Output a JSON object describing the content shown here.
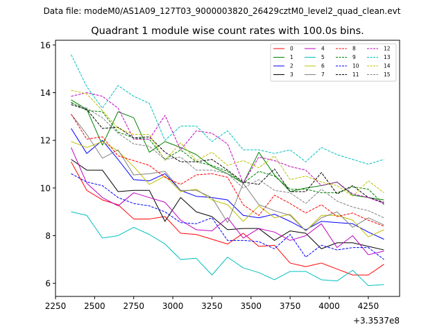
{
  "figure": {
    "suptitle": "Data file: modeM0/AS1A09_127T03_9000003820_26429cztM0_level2_quad_clean.evt"
  },
  "chart_data": {
    "type": "line",
    "title": "Quadrant 1 module wise count rates with 100.0s bins.",
    "xlabel": "",
    "ylabel": "",
    "x_offset_label": "+3.3537e8",
    "xlim": [
      2250,
      4450
    ],
    "ylim": [
      5.45,
      16.2
    ],
    "xticks": [
      2250,
      2500,
      2750,
      3000,
      3250,
      3500,
      3750,
      4000,
      4250
    ],
    "yticks": [
      6,
      8,
      10,
      12,
      14,
      16
    ],
    "grid": false,
    "legend_position": "top-right",
    "x": [
      2350,
      2450,
      2550,
      2650,
      2750,
      2850,
      2950,
      3050,
      3150,
      3250,
      3350,
      3450,
      3550,
      3650,
      3750,
      3850,
      3950,
      4050,
      4150,
      4250,
      4350
    ],
    "series": [
      {
        "name": "0",
        "color": "#ff0000",
        "dash": "solid",
        "values": [
          11.1,
          9.9,
          9.5,
          9.3,
          8.7,
          8.7,
          8.8,
          8.1,
          8.05,
          7.85,
          7.65,
          8.1,
          7.55,
          7.6,
          6.85,
          6.7,
          6.85,
          6.6,
          6.35,
          6.35,
          6.8
        ]
      },
      {
        "name": "1",
        "color": "#008000",
        "dash": "solid",
        "values": [
          13.7,
          13.3,
          11.8,
          13.2,
          12.95,
          11.5,
          11.95,
          11.7,
          11.4,
          10.9,
          10.6,
          10.2,
          11.5,
          10.55,
          9.85,
          10.0,
          10.1,
          10.25,
          9.7,
          9.6,
          9.5
        ]
      },
      {
        "name": "2",
        "color": "#0000ff",
        "dash": "solid",
        "values": [
          12.5,
          11.45,
          12.0,
          11.2,
          10.35,
          10.3,
          10.6,
          9.9,
          9.65,
          9.6,
          9.5,
          8.85,
          8.75,
          8.9,
          8.6,
          8.25,
          8.6,
          8.55,
          8.5,
          8.15,
          7.85
        ]
      },
      {
        "name": "3",
        "color": "#000000",
        "dash": "solid",
        "values": [
          11.2,
          10.75,
          10.75,
          9.85,
          9.9,
          9.9,
          8.6,
          9.6,
          9.0,
          8.8,
          8.25,
          8.3,
          8.3,
          7.8,
          8.2,
          8.1,
          7.45,
          7.7,
          7.7,
          7.55,
          7.4
        ]
      },
      {
        "name": "4",
        "color": "#bf00bf",
        "dash": "solid",
        "values": [
          11.7,
          10.2,
          9.6,
          9.25,
          9.8,
          9.6,
          9.4,
          8.65,
          8.25,
          8.2,
          8.75,
          7.9,
          8.3,
          8.15,
          7.8,
          8.0,
          8.5,
          7.5,
          8.0,
          7.2,
          7.35
        ]
      },
      {
        "name": "5",
        "color": "#00bfbf",
        "dash": "solid",
        "values": [
          9.0,
          8.85,
          7.9,
          8.0,
          8.35,
          8.05,
          7.65,
          7.0,
          7.05,
          6.35,
          7.1,
          6.65,
          6.45,
          6.15,
          6.5,
          6.5,
          6.15,
          6.1,
          6.55,
          5.9,
          5.95
        ]
      },
      {
        "name": "6",
        "color": "#bfbf00",
        "dash": "solid",
        "values": [
          11.95,
          11.7,
          11.95,
          11.55,
          10.9,
          10.15,
          10.5,
          9.85,
          9.95,
          9.5,
          9.3,
          8.6,
          9.25,
          8.75,
          8.9,
          8.2,
          8.85,
          8.85,
          8.65,
          7.95,
          8.25
        ]
      },
      {
        "name": "7",
        "color": "#808080",
        "dash": "solid",
        "values": [
          13.1,
          12.25,
          11.25,
          11.6,
          10.55,
          10.6,
          10.7,
          9.9,
          9.9,
          9.6,
          8.55,
          10.2,
          9.3,
          9.05,
          8.85,
          8.2,
          8.75,
          9.0,
          8.35,
          8.75,
          8.45
        ]
      },
      {
        "name": "8",
        "color": "#ff0000",
        "dash": "dashed",
        "values": [
          13.1,
          12.05,
          12.15,
          11.35,
          11.15,
          10.95,
          10.45,
          10.15,
          10.55,
          10.6,
          10.45,
          9.3,
          8.85,
          9.7,
          9.35,
          8.95,
          9.3,
          8.8,
          8.95,
          8.65,
          8.4
        ]
      },
      {
        "name": "9",
        "color": "#008000",
        "dash": "dashed",
        "values": [
          13.6,
          13.25,
          13.2,
          12.35,
          12.1,
          12.05,
          11.2,
          11.6,
          11.1,
          10.95,
          10.7,
          10.2,
          10.7,
          10.5,
          9.95,
          9.95,
          9.8,
          9.8,
          10.05,
          9.95,
          9.3
        ]
      },
      {
        "name": "10",
        "color": "#0000ff",
        "dash": "dashed",
        "values": [
          10.6,
          10.25,
          10.1,
          9.6,
          9.35,
          9.25,
          9.0,
          8.55,
          8.5,
          8.75,
          7.8,
          7.8,
          7.75,
          7.45,
          8.05,
          7.1,
          7.6,
          7.4,
          7.5,
          7.5,
          7.0
        ]
      },
      {
        "name": "11",
        "color": "#000000",
        "dash": "dashed",
        "values": [
          13.5,
          13.3,
          12.5,
          12.55,
          12.1,
          12.15,
          11.5,
          11.1,
          11.1,
          11.2,
          10.75,
          10.25,
          10.15,
          10.8,
          9.85,
          9.85,
          10.65,
          9.75,
          10.1,
          9.6,
          9.4
        ]
      },
      {
        "name": "12",
        "color": "#bf00bf",
        "dash": "dashed",
        "values": [
          13.85,
          14.0,
          13.85,
          13.35,
          12.05,
          12.05,
          13.05,
          11.6,
          12.4,
          12.3,
          11.85,
          10.2,
          11.3,
          11.15,
          10.9,
          10.75,
          10.1,
          10.25,
          9.75,
          9.6,
          9.35
        ]
      },
      {
        "name": "13",
        "color": "#00bfbf",
        "dash": "dashed",
        "values": [
          15.6,
          14.25,
          13.35,
          14.3,
          13.85,
          13.55,
          12.0,
          12.6,
          12.6,
          11.95,
          12.4,
          11.6,
          11.6,
          11.45,
          11.6,
          11.1,
          11.7,
          11.4,
          11.2,
          11.0,
          11.2
        ]
      },
      {
        "name": "14",
        "color": "#bfbf00",
        "dash": "dashed",
        "values": [
          14.1,
          13.95,
          13.25,
          12.5,
          12.25,
          12.25,
          11.15,
          11.9,
          11.15,
          11.5,
          10.95,
          11.15,
          10.85,
          11.35,
          10.35,
          10.5,
          10.25,
          10.1,
          9.65,
          10.3,
          9.8
        ]
      },
      {
        "name": "15",
        "color": "#808080",
        "dash": "dashed",
        "values": [
          13.55,
          13.35,
          12.95,
          12.3,
          11.85,
          11.75,
          11.2,
          11.3,
          10.75,
          10.75,
          10.6,
          10.0,
          10.35,
          9.9,
          9.8,
          9.35,
          9.95,
          9.45,
          9.2,
          9.05,
          8.75
        ]
      }
    ]
  }
}
